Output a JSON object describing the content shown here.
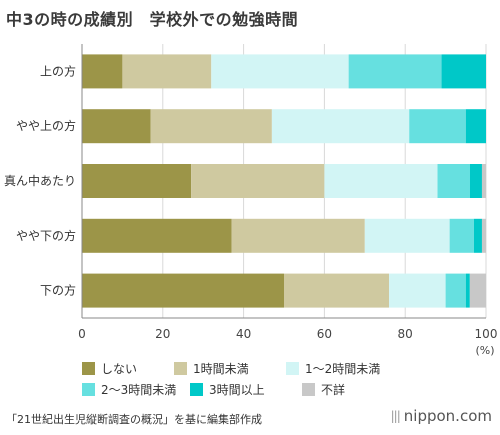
{
  "title": "中3の時の成績別　学校外での勉強時間",
  "source": "「21世紀出生児縦断調査の概況」を基に編集部作成",
  "brand": "nippon.com",
  "brand_mark": "|||",
  "chart_data": {
    "type": "bar",
    "orientation": "horizontal",
    "stacked": true,
    "categories": [
      "上の方",
      "やや上の方",
      "真ん中あたり",
      "やや下の方",
      "下の方"
    ],
    "series": [
      {
        "name": "しない",
        "color": "#9c9548",
        "values": [
          10,
          17,
          27,
          37,
          50
        ]
      },
      {
        "name": "1時間未満",
        "color": "#cfc9a0",
        "values": [
          22,
          30,
          33,
          33,
          26
        ]
      },
      {
        "name": "1～2時間未満",
        "color": "#d2f5f5",
        "values": [
          34,
          34,
          28,
          21,
          14
        ]
      },
      {
        "name": "2～3時間未満",
        "color": "#66e0e0",
        "values": [
          23,
          14,
          8,
          6,
          5
        ]
      },
      {
        "name": "3時間以上",
        "color": "#00c8c8",
        "values": [
          11,
          5,
          3,
          2,
          1
        ]
      },
      {
        "name": "不詳",
        "color": "#c8c8c8",
        "values": [
          0,
          0,
          1,
          1,
          4
        ]
      }
    ],
    "xlim": [
      0,
      100
    ],
    "xticks": [
      "0",
      "20",
      "40",
      "60",
      "80",
      "100"
    ],
    "x_unit": "(%)",
    "grid": true,
    "legend_position": "bottom"
  }
}
